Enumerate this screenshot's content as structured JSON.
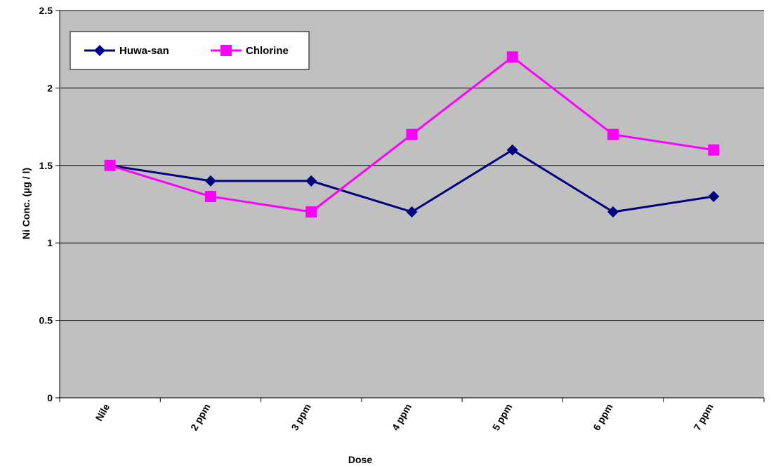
{
  "chart_data": {
    "type": "line",
    "title": "",
    "xlabel": "Dose",
    "ylabel": "Ni Conc. (µg / l)",
    "categories": [
      "Nile",
      "2 ppm",
      "3 ppm",
      "4 ppm",
      "5 ppm",
      "6 ppm",
      "7 ppm"
    ],
    "ylim": [
      0,
      2.5
    ],
    "yticks": [
      0,
      0.5,
      1,
      1.5,
      2,
      2.5
    ],
    "ytick_labels": [
      "0",
      "0.5",
      "1",
      "1.5",
      "2",
      "2.5"
    ],
    "grid": true,
    "legend_position": "top-left",
    "plot_background": "#c0c0c0",
    "series": [
      {
        "name": "Huwa-san",
        "color": "#000080",
        "marker": "diamond",
        "values": [
          1.5,
          1.4,
          1.4,
          1.2,
          1.6,
          1.2,
          1.3
        ]
      },
      {
        "name": "Chlorine",
        "color": "#ff00ff",
        "marker": "square",
        "values": [
          1.5,
          1.3,
          1.2,
          1.7,
          2.2,
          1.7,
          1.6
        ]
      }
    ]
  }
}
